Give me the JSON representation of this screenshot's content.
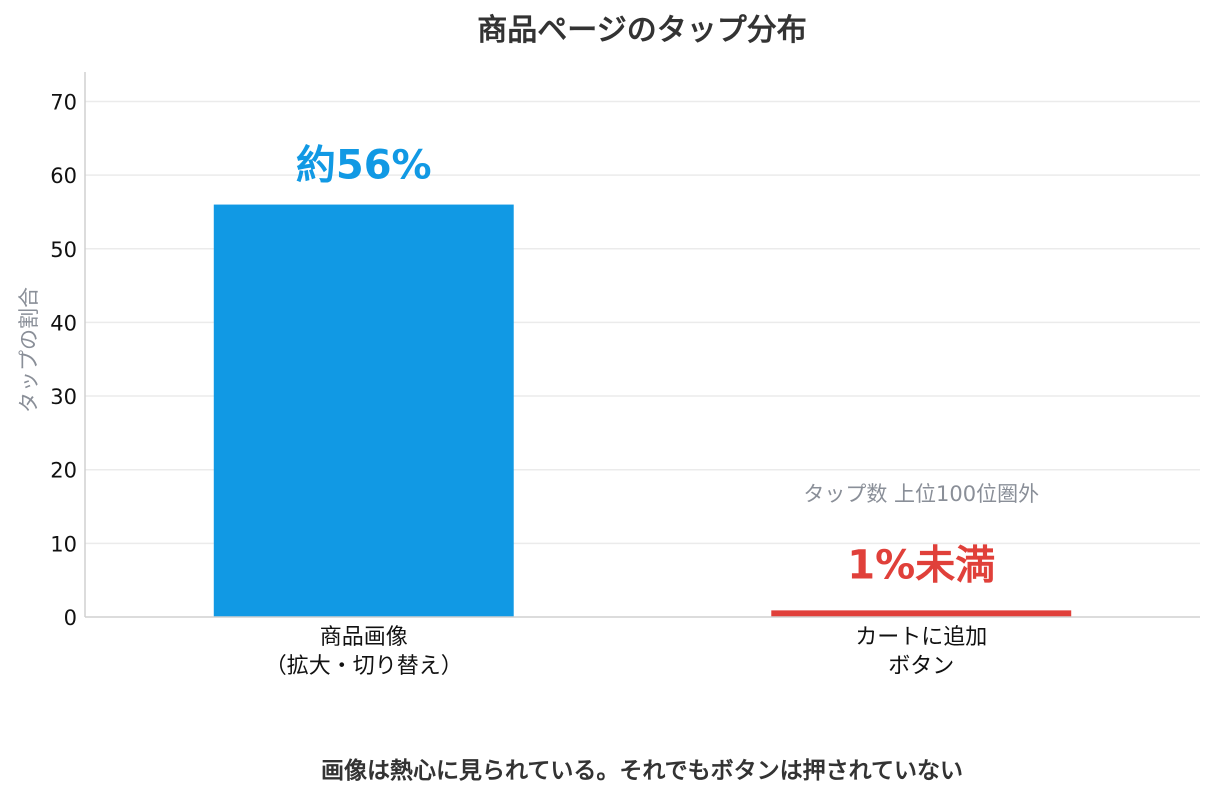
{
  "chart_data": {
    "type": "bar",
    "title": "商品ページのタップ分布",
    "ylabel": "タップの割合",
    "xlabel": "",
    "ylim": [
      0,
      74
    ],
    "yticks": [
      0,
      10,
      20,
      30,
      40,
      50,
      60,
      70
    ],
    "grid": true,
    "categories": [
      [
        "商品画像",
        "（拡大・切り替え）"
      ],
      [
        "カートに追加",
        "ボタン"
      ]
    ],
    "values": [
      56,
      0.9
    ],
    "data_labels": [
      "約56%",
      "1%未満"
    ],
    "annotations": [
      {
        "category_index": 1,
        "text": "タップ数 上位100位圏外"
      }
    ],
    "caption": "画像は熱心に見られている。それでもボタンは押されていない",
    "colors": {
      "bars": [
        "#1199e4",
        "#e0403a"
      ],
      "labels": [
        "#1199e4",
        "#e0403a"
      ],
      "grid": "#ebebeb",
      "axis": "#d0d0d0",
      "muted": "#8a8f98"
    }
  }
}
